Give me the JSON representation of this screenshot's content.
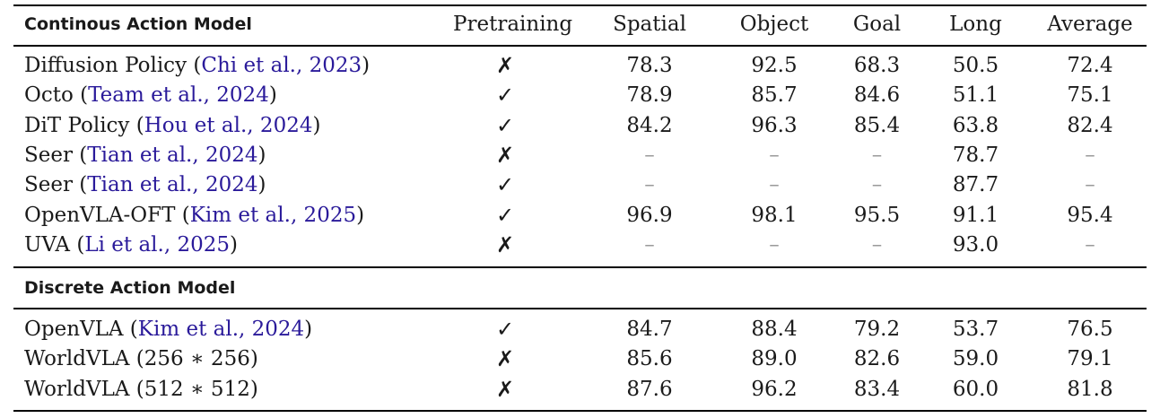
{
  "header": {
    "section_label": "Continous Action Model",
    "columns": [
      "Pretraining",
      "Spatial",
      "Object",
      "Goal",
      "Long",
      "Average"
    ]
  },
  "continuous_rows": [
    {
      "name": "Diffusion Policy",
      "open": " (",
      "cite": "Chi et al., 2023",
      "close": ")",
      "pretraining": "✗",
      "spatial": "78.3",
      "object": "92.5",
      "goal": "68.3",
      "long": "50.5",
      "average": "72.4"
    },
    {
      "name": "Octo",
      "open": " (",
      "cite": "Team et al., 2024",
      "close": ")",
      "pretraining": "✓",
      "spatial": "78.9",
      "object": "85.7",
      "goal": "84.6",
      "long": "51.1",
      "average": "75.1"
    },
    {
      "name": "DiT Policy",
      "open": " (",
      "cite": "Hou et al., 2024",
      "close": ")",
      "pretraining": "✓",
      "spatial": "84.2",
      "object": "96.3",
      "goal": "85.4",
      "long": "63.8",
      "average": "82.4"
    },
    {
      "name": "Seer",
      "open": " (",
      "cite": "Tian et al., 2024",
      "close": ")",
      "pretraining": "✗",
      "spatial": "–",
      "object": "–",
      "goal": "–",
      "long": "78.7",
      "average": "–"
    },
    {
      "name": "Seer",
      "open": " (",
      "cite": "Tian et al., 2024",
      "close": ")",
      "pretraining": "✓",
      "spatial": "–",
      "object": "–",
      "goal": "–",
      "long": "87.7",
      "average": "–"
    },
    {
      "name": "OpenVLA-OFT",
      "open": " (",
      "cite": "Kim et al., 2025",
      "close": ")",
      "pretraining": "✓",
      "spatial": "96.9",
      "object": "98.1",
      "goal": "95.5",
      "long": "91.1",
      "average": "95.4"
    },
    {
      "name": "UVA",
      "open": " (",
      "cite": "Li et al., 2025",
      "close": ")",
      "pretraining": "✗",
      "spatial": "–",
      "object": "–",
      "goal": "–",
      "long": "93.0",
      "average": "–"
    }
  ],
  "discrete_section_label": "Discrete Action Model",
  "discrete_rows": [
    {
      "name": "OpenVLA",
      "open": " (",
      "cite": "Kim et al., 2024",
      "close": ")",
      "pretraining": "✓",
      "spatial": "84.7",
      "object": "88.4",
      "goal": "79.2",
      "long": "53.7",
      "average": "76.5"
    },
    {
      "name": "WorldVLA (256 ∗ 256)",
      "open": "",
      "cite": "",
      "close": "",
      "pretraining": "✗",
      "spatial": "85.6",
      "object": "89.0",
      "goal": "82.6",
      "long": "59.0",
      "average": "79.1"
    },
    {
      "name": "WorldVLA (512 ∗ 512)",
      "open": "",
      "cite": "",
      "close": "",
      "pretraining": "✗",
      "spatial": "87.6",
      "object": "96.2",
      "goal": "83.4",
      "long": "60.0",
      "average": "81.8"
    }
  ]
}
